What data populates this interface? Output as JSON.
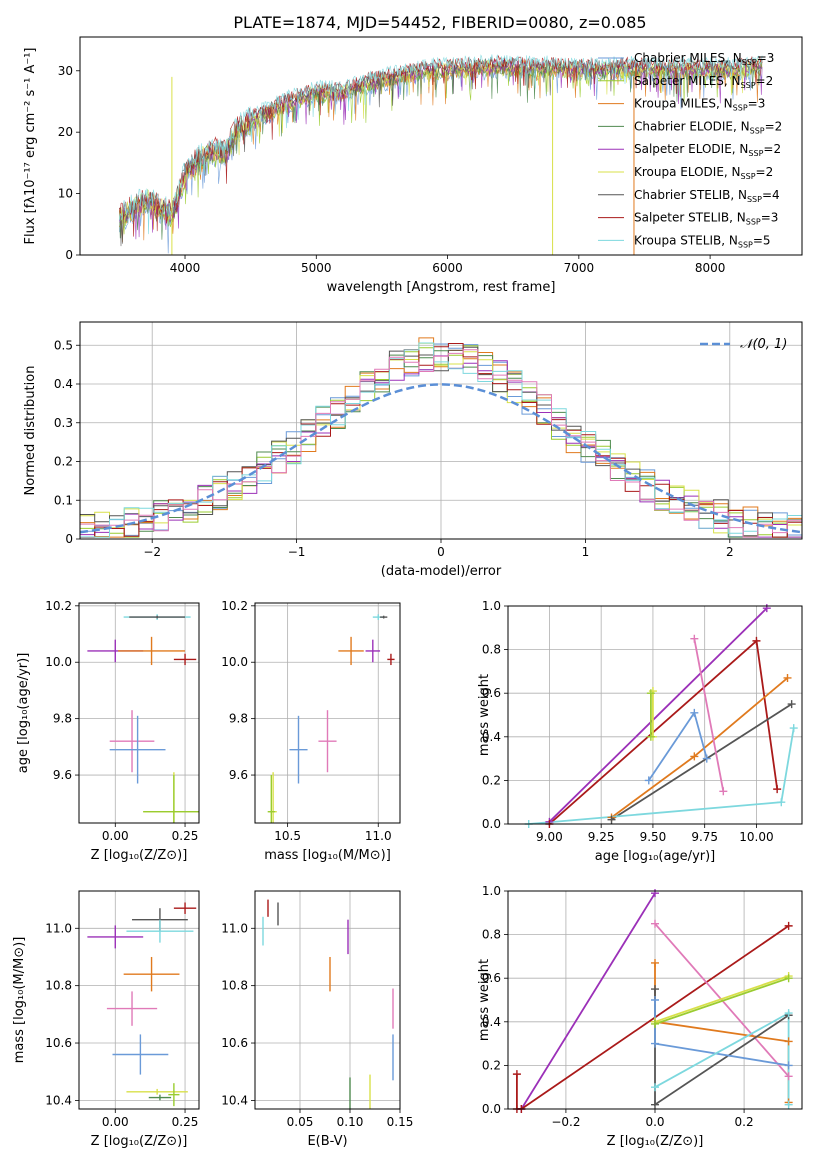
{
  "figure": {
    "title": "PLATE=1874, MJD=54452, FIBERID=0080, z=0.085"
  },
  "colors": {
    "chabrier_miles": "#6a9ad8",
    "salpeter_miles": "#9acc30",
    "kroupa_miles": "#e07a1e",
    "chabrier_elodie": "#4f8a4f",
    "salpeter_elodie": "#9b30b8",
    "kroupa_elodie": "#d8e04a",
    "chabrier_stelib": "#555555",
    "salpeter_stelib": "#aa1a1a",
    "kroupa_stelib": "#7dd8de",
    "pink": "#e07ab8",
    "normal_curve": "#5b8fd6"
  },
  "chart_data": [
    {
      "id": "spectrum",
      "type": "line",
      "title": "PLATE=1874, MJD=54452, FIBERID=0080, z=0.085",
      "xlabel": "wavelength [Angstrom, rest frame]",
      "ylabel": "Flux [fλ10⁻¹⁷ erg cm⁻² s⁻¹ A⁻¹]",
      "xlim": [
        3200,
        8700
      ],
      "ylim": [
        0,
        35.5
      ],
      "xticks": [
        4000,
        5000,
        6000,
        7000,
        8000
      ],
      "yticks": [
        0,
        10,
        20,
        30
      ],
      "grid": false,
      "legend_position": "right",
      "legend": [
        {
          "label": "Chabrier MILES, N",
          "sub": "SSP",
          "suffix": "=3",
          "color": "#6a9ad8"
        },
        {
          "label": "Salpeter MILES, N",
          "sub": "SSP",
          "suffix": "=2",
          "color": "#9acc30"
        },
        {
          "label": "Kroupa MILES, N",
          "sub": "SSP",
          "suffix": "=3",
          "color": "#e07a1e"
        },
        {
          "label": "Chabrier ELODIE, N",
          "sub": "SSP",
          "suffix": "=2",
          "color": "#4f8a4f"
        },
        {
          "label": "Salpeter ELODIE, N",
          "sub": "SSP",
          "suffix": "=2",
          "color": "#9b30b8"
        },
        {
          "label": "Kroupa ELODIE, N",
          "sub": "SSP",
          "suffix": "=2",
          "color": "#d8e04a"
        },
        {
          "label": "Chabrier STELIB, N",
          "sub": "SSP",
          "suffix": "=4",
          "color": "#555555"
        },
        {
          "label": "Salpeter STELIB, N",
          "sub": "SSP",
          "suffix": "=3",
          "color": "#aa1a1a"
        },
        {
          "label": "Kroupa STELIB, N",
          "sub": "SSP",
          "suffix": "=5",
          "color": "#7dd8de"
        }
      ],
      "continuum_x": [
        3500,
        3700,
        3900,
        4000,
        4100,
        4200,
        4300,
        4400,
        4600,
        4800,
        5000,
        5200,
        5400,
        5600,
        5800,
        6000,
        6200,
        6400,
        6600,
        6800,
        7000,
        7200,
        7400,
        7600,
        7800,
        8000,
        8200,
        8400
      ],
      "continuum_y": [
        6,
        9,
        6.5,
        13,
        15.5,
        17,
        16.5,
        20.5,
        23,
        25,
        26.5,
        26.5,
        28,
        29,
        30,
        30.3,
        30.5,
        30.8,
        30.5,
        30.5,
        30.3,
        30.3,
        30.5,
        30.2,
        30.3,
        30.2,
        30.3,
        30.8
      ],
      "drop_lines": [
        {
          "x": 6800,
          "color": "#d8e04a"
        },
        {
          "x": 7420,
          "color": "#e07a1e"
        },
        {
          "x": 3900,
          "color": "#d8e04a"
        }
      ]
    },
    {
      "id": "residuals",
      "type": "step-histogram",
      "xlabel": "(data-model)/error",
      "ylabel": "Normed distribution",
      "xlim": [
        -2.5,
        2.5
      ],
      "ylim": [
        0,
        0.56
      ],
      "xticks": [
        -2,
        -1,
        0,
        1,
        2
      ],
      "yticks": [
        0.0,
        0.1,
        0.2,
        0.3,
        0.4,
        0.5
      ],
      "grid": true,
      "legend_position": "top-right",
      "legend": [
        {
          "label": "𝒩(0, 1)",
          "style": "dashed",
          "color": "#5b8fd6"
        }
      ],
      "bins": 49,
      "series_colors": [
        "#6a9ad8",
        "#9acc30",
        "#e07a1e",
        "#4f8a4f",
        "#9b30b8",
        "#d8e04a",
        "#555555",
        "#aa1a1a",
        "#7dd8de",
        "#e07ab8"
      ]
    },
    {
      "id": "age_vs_Z",
      "type": "errorbar",
      "xlabel": "Z [log₁₀(Z/Z⊙)]",
      "ylabel": "age  [log₁₀(age/yr)]",
      "xlim": [
        -0.13,
        0.3
      ],
      "ylim": [
        9.43,
        10.21
      ],
      "xticks": [
        0.0,
        0.25
      ],
      "xticklabels": [
        "0.00",
        "0.25"
      ],
      "yticks": [
        9.6,
        9.8,
        10.0,
        10.2
      ],
      "yticklabels": [
        "9.6",
        "9.8",
        "10.0",
        "10.2"
      ],
      "grid": true,
      "points": [
        {
          "x": 0.15,
          "y": 10.16,
          "xerr": 0.12,
          "yerr": 0.01,
          "color": "#7dd8de"
        },
        {
          "x": 0.15,
          "y": 10.16,
          "xerr": 0.1,
          "yerr": 0.005,
          "color": "#555555"
        },
        {
          "x": 0.0,
          "y": 10.04,
          "xerr": 0.1,
          "yerr": 0.04,
          "color": "#9b30b8"
        },
        {
          "x": 0.13,
          "y": 10.04,
          "xerr": 0.12,
          "yerr": 0.05,
          "color": "#e07a1e"
        },
        {
          "x": 0.25,
          "y": 10.01,
          "xerr": 0.04,
          "yerr": 0.02,
          "color": "#aa1a1a"
        },
        {
          "x": 0.06,
          "y": 9.72,
          "xerr": 0.08,
          "yerr": 0.11,
          "color": "#e07ab8"
        },
        {
          "x": 0.08,
          "y": 9.69,
          "xerr": 0.1,
          "yerr": 0.12,
          "color": "#6a9ad8"
        },
        {
          "x": 0.21,
          "y": 9.47,
          "xerr": 0.11,
          "yerr": 0.14,
          "color": "#d8e04a"
        },
        {
          "x": 0.21,
          "y": 9.47,
          "xerr": 0.11,
          "yerr": 0.13,
          "color": "#9acc30"
        }
      ]
    },
    {
      "id": "age_vs_mass",
      "type": "errorbar",
      "xlabel": "mass [log₁₀(M/M⊙)]",
      "ylabel": "",
      "xlim": [
        10.32,
        11.12
      ],
      "ylim": [
        9.43,
        10.21
      ],
      "xticks": [
        10.5,
        11.0
      ],
      "xticklabels": [
        "10.5",
        "11.0"
      ],
      "yticks": [
        9.6,
        9.8,
        10.0,
        10.2
      ],
      "yticklabels": [
        "9.6",
        "9.8",
        "10.0",
        "10.2"
      ],
      "grid": true,
      "points": [
        {
          "x": 11.0,
          "y": 10.16,
          "xerr": 0.03,
          "yerr": 0.01,
          "color": "#7dd8de"
        },
        {
          "x": 11.03,
          "y": 10.16,
          "xerr": 0.02,
          "yerr": 0.005,
          "color": "#555555"
        },
        {
          "x": 10.97,
          "y": 10.04,
          "xerr": 0.04,
          "yerr": 0.04,
          "color": "#9b30b8"
        },
        {
          "x": 10.85,
          "y": 10.04,
          "xerr": 0.07,
          "yerr": 0.05,
          "color": "#e07a1e"
        },
        {
          "x": 11.07,
          "y": 10.01,
          "xerr": 0.02,
          "yerr": 0.02,
          "color": "#aa1a1a"
        },
        {
          "x": 10.72,
          "y": 9.72,
          "xerr": 0.05,
          "yerr": 0.11,
          "color": "#e07ab8"
        },
        {
          "x": 10.56,
          "y": 9.69,
          "xerr": 0.05,
          "yerr": 0.12,
          "color": "#6a9ad8"
        },
        {
          "x": 10.42,
          "y": 9.47,
          "xerr": 0.02,
          "yerr": 0.14,
          "color": "#d8e04a"
        },
        {
          "x": 10.41,
          "y": 9.47,
          "xerr": 0.02,
          "yerr": 0.13,
          "color": "#9acc30"
        }
      ]
    },
    {
      "id": "massweight_vs_age",
      "type": "line",
      "xlabel": "age  [log₁₀(age/yr)]",
      "ylabel": "mass weight",
      "xlim": [
        8.8,
        10.22
      ],
      "ylim": [
        0,
        1
      ],
      "xticks": [
        9.0,
        9.25,
        9.5,
        9.75,
        10.0
      ],
      "xticklabels": [
        "9.00",
        "9.25",
        "9.50",
        "9.75",
        "10.00"
      ],
      "yticks": [
        0.0,
        0.2,
        0.4,
        0.6,
        0.8,
        1.0
      ],
      "yticklabels": [
        "0.0",
        "0.2",
        "0.4",
        "0.6",
        "0.8",
        "1.0"
      ],
      "grid": true,
      "series": [
        {
          "color": "#9b30b8",
          "x": [
            9.0,
            10.05
          ],
          "y": [
            0.01,
            0.99
          ]
        },
        {
          "color": "#aa1a1a",
          "x": [
            9.0,
            10.0,
            10.1
          ],
          "y": [
            0.0,
            0.84,
            0.16
          ]
        },
        {
          "color": "#e07a1e",
          "x": [
            9.3,
            9.7,
            10.15
          ],
          "y": [
            0.03,
            0.31,
            0.67
          ]
        },
        {
          "color": "#555555",
          "x": [
            9.3,
            10.17
          ],
          "y": [
            0.02,
            0.55
          ]
        },
        {
          "color": "#6a9ad8",
          "x": [
            9.48,
            9.7,
            9.76
          ],
          "y": [
            0.2,
            0.51,
            0.3
          ]
        },
        {
          "color": "#e07ab8",
          "x": [
            9.7,
            9.84
          ],
          "y": [
            0.85,
            0.15
          ]
        },
        {
          "color": "#d8e04a",
          "x": [
            9.5,
            9.5
          ],
          "y": [
            0.4,
            0.61
          ]
        },
        {
          "color": "#9acc30",
          "x": [
            9.49,
            9.49
          ],
          "y": [
            0.4,
            0.6
          ]
        },
        {
          "color": "#7dd8de",
          "x": [
            8.9,
            10.12,
            10.18
          ],
          "y": [
            0.0,
            0.1,
            0.44
          ]
        }
      ]
    },
    {
      "id": "mass_vs_Z",
      "type": "errorbar",
      "xlabel": "Z [log₁₀(Z/Z⊙)]",
      "ylabel": "mass [log₁₀(M/M⊙)]",
      "xlim": [
        -0.13,
        0.3
      ],
      "ylim": [
        10.37,
        11.13
      ],
      "xticks": [
        0.0,
        0.25
      ],
      "xticklabels": [
        "0.00",
        "0.25"
      ],
      "yticks": [
        10.4,
        10.6,
        10.8,
        11.0
      ],
      "yticklabels": [
        "10.4",
        "10.6",
        "10.8",
        "11.0"
      ],
      "grid": true,
      "points": [
        {
          "x": 0.25,
          "y": 11.07,
          "xerr": 0.04,
          "yerr": 0.02,
          "color": "#aa1a1a"
        },
        {
          "x": 0.16,
          "y": 11.03,
          "xerr": 0.1,
          "yerr": 0.04,
          "color": "#555555"
        },
        {
          "x": 0.16,
          "y": 10.99,
          "xerr": 0.12,
          "yerr": 0.04,
          "color": "#7dd8de"
        },
        {
          "x": 0.0,
          "y": 10.97,
          "xerr": 0.1,
          "yerr": 0.04,
          "color": "#9b30b8"
        },
        {
          "x": 0.13,
          "y": 10.84,
          "xerr": 0.1,
          "yerr": 0.06,
          "color": "#e07a1e"
        },
        {
          "x": 0.06,
          "y": 10.72,
          "xerr": 0.09,
          "yerr": 0.06,
          "color": "#e07ab8"
        },
        {
          "x": 0.09,
          "y": 10.56,
          "xerr": 0.1,
          "yerr": 0.07,
          "color": "#6a9ad8"
        },
        {
          "x": 0.15,
          "y": 10.43,
          "xerr": 0.11,
          "yerr": 0.01,
          "color": "#d8e04a"
        },
        {
          "x": 0.21,
          "y": 10.42,
          "xerr": 0.02,
          "yerr": 0.04,
          "color": "#9acc30"
        },
        {
          "x": 0.16,
          "y": 10.41,
          "xerr": 0.04,
          "yerr": 0.01,
          "color": "#4f8a4f"
        }
      ]
    },
    {
      "id": "mass_vs_ebv",
      "type": "errorbar",
      "xlabel": "E(B-V)",
      "ylabel": "",
      "xlim": [
        0.005,
        0.15
      ],
      "ylim": [
        10.37,
        11.13
      ],
      "xticks": [
        0.05,
        0.1,
        0.15
      ],
      "xticklabels": [
        "0.05",
        "0.10",
        "0.15"
      ],
      "yticks": [
        10.4,
        10.6,
        10.8,
        11.0
      ],
      "yticklabels": [
        "10.4",
        "10.6",
        "10.8",
        "11.0"
      ],
      "grid": true,
      "points": [
        {
          "x": 0.018,
          "y": 11.07,
          "xerr": 0.0,
          "yerr": 0.03,
          "color": "#aa1a1a"
        },
        {
          "x": 0.028,
          "y": 11.05,
          "xerr": 0.0,
          "yerr": 0.04,
          "color": "#555555"
        },
        {
          "x": 0.013,
          "y": 10.99,
          "xerr": 0.0,
          "yerr": 0.05,
          "color": "#7dd8de"
        },
        {
          "x": 0.098,
          "y": 10.97,
          "xerr": 0.0,
          "yerr": 0.06,
          "color": "#9b30b8"
        },
        {
          "x": 0.08,
          "y": 10.84,
          "xerr": 0.0,
          "yerr": 0.06,
          "color": "#e07a1e"
        },
        {
          "x": 0.143,
          "y": 10.72,
          "xerr": 0.0,
          "yerr": 0.07,
          "color": "#e07ab8"
        },
        {
          "x": 0.143,
          "y": 10.55,
          "xerr": 0.0,
          "yerr": 0.08,
          "color": "#6a9ad8"
        },
        {
          "x": 0.12,
          "y": 10.43,
          "xerr": 0.0,
          "yerr": 0.06,
          "color": "#d8e04a"
        },
        {
          "x": 0.1,
          "y": 10.42,
          "xerr": 0.0,
          "yerr": 0.06,
          "color": "#4f8a4f"
        }
      ]
    },
    {
      "id": "massweight_vs_Z",
      "type": "line",
      "xlabel": "Z [log₁₀(Z/Z⊙)]",
      "ylabel": "mass weight",
      "xlim": [
        -0.33,
        0.33
      ],
      "ylim": [
        0,
        1
      ],
      "xticks": [
        -0.2,
        0.0,
        0.2
      ],
      "xticklabels": [
        "−0.2",
        "0.0",
        "0.2"
      ],
      "yticks": [
        0.0,
        0.2,
        0.4,
        0.6,
        0.8,
        1.0
      ],
      "yticklabels": [
        "0.0",
        "0.2",
        "0.4",
        "0.6",
        "0.8",
        "1.0"
      ],
      "grid": true,
      "series": [
        {
          "color": "#9b30b8",
          "x": [
            -0.3,
            0.0
          ],
          "y": [
            0.0,
            0.99
          ]
        },
        {
          "color": "#aa1a1a",
          "x": [
            -0.31,
            -0.31,
            -0.3,
            0.3
          ],
          "y": [
            0.16,
            0.0,
            0.0,
            0.84
          ]
        },
        {
          "color": "#e07ab8",
          "x": [
            0.0,
            0.3
          ],
          "y": [
            0.85,
            0.15
          ]
        },
        {
          "color": "#e07a1e",
          "x": [
            0.0,
            0.0,
            0.3,
            0.3
          ],
          "y": [
            0.67,
            0.4,
            0.31,
            0.03
          ]
        },
        {
          "color": "#d8e04a",
          "x": [
            0.0,
            0.3
          ],
          "y": [
            0.4,
            0.61
          ]
        },
        {
          "color": "#9acc30",
          "x": [
            0.0,
            0.3
          ],
          "y": [
            0.39,
            0.6
          ]
        },
        {
          "color": "#555555",
          "x": [
            0.0,
            0.0,
            0.3
          ],
          "y": [
            0.55,
            0.02,
            0.43
          ]
        },
        {
          "color": "#6a9ad8",
          "x": [
            0.0,
            0.0,
            0.3
          ],
          "y": [
            0.5,
            0.3,
            0.2
          ]
        },
        {
          "color": "#7dd8de",
          "x": [
            0.0,
            0.3,
            0.3
          ],
          "y": [
            0.1,
            0.44,
            0.02
          ]
        }
      ]
    }
  ]
}
